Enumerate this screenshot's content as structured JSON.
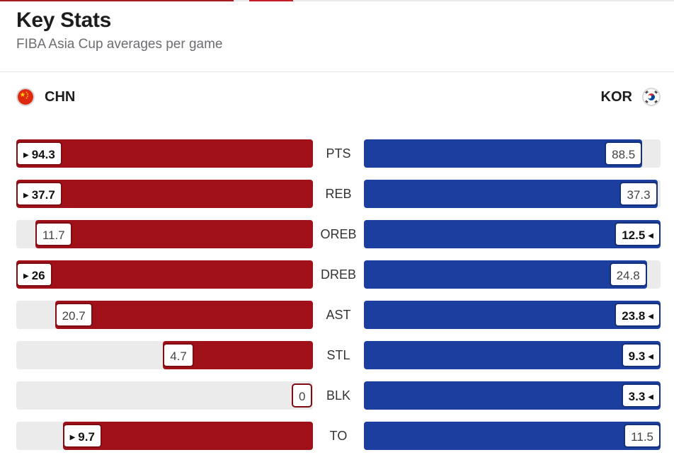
{
  "header": {
    "title": "Key Stats",
    "subtitle": "FIBA Asia Cup averages per game"
  },
  "teams": {
    "left": {
      "abbr": "CHN",
      "flag_icon": "china-flag-icon",
      "color": "#a01019"
    },
    "right": {
      "abbr": "KOR",
      "flag_icon": "korea-flag-icon",
      "color": "#1c3f9f"
    }
  },
  "stats": [
    {
      "label": "PTS",
      "left": "94.3",
      "right": "88.5",
      "leader": "left"
    },
    {
      "label": "REB",
      "left": "37.7",
      "right": "37.3",
      "leader": "left"
    },
    {
      "label": "OREB",
      "left": "11.7",
      "right": "12.5",
      "leader": "right"
    },
    {
      "label": "DREB",
      "left": "26",
      "right": "24.8",
      "leader": "left"
    },
    {
      "label": "AST",
      "left": "20.7",
      "right": "23.8",
      "leader": "right"
    },
    {
      "label": "STL",
      "left": "4.7",
      "right": "9.3",
      "leader": "right"
    },
    {
      "label": "BLK",
      "left": "0",
      "right": "3.3",
      "leader": "right"
    },
    {
      "label": "TO",
      "left": "9.7",
      "right": "11.5",
      "leader": "left"
    }
  ]
}
